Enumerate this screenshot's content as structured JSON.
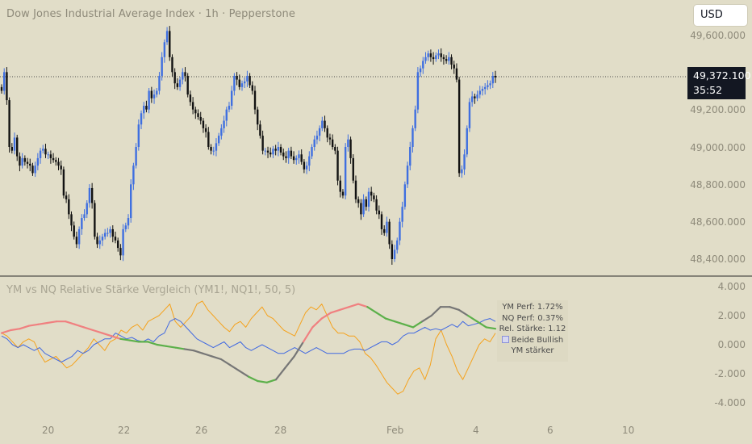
{
  "header": {
    "title": "Dow Jones Industrial Average Index · 1h · Pepperstone"
  },
  "currency_button": {
    "label": "USD"
  },
  "price_axis": {
    "labels": [
      "49,600.000",
      "49,200.000",
      "49,000.000",
      "48,800.000",
      "48,600.000",
      "48,400.000"
    ]
  },
  "last_price": {
    "value": "49,372.100",
    "countdown": "35:52"
  },
  "indicator": {
    "title": "YM vs NQ Relative Stärke Vergleich (YM1!, NQ1!, 50, 5)",
    "axis_labels": [
      "4.000",
      "2.000",
      "0.000",
      "-2.000",
      "-4.000"
    ],
    "info": {
      "ym_perf": "YM Perf: 1.72%",
      "nq_perf": "NQ Perf: 0.37%",
      "rel_strength": "Rel. Stärke: 1.12",
      "status": "Beide Bullish",
      "note": "YM stärker"
    }
  },
  "time_axis": {
    "labels": [
      "20",
      "22",
      "26",
      "28",
      "Feb",
      "4",
      "6",
      "10"
    ]
  },
  "colors": {
    "background": "#e1ddc8",
    "candle_up": "#3f6fe0",
    "candle_down": "#121212",
    "line_orange": "#f5a21c",
    "line_blue": "#4169e1",
    "strength_red": "#f08080",
    "strength_green": "#5cb04a",
    "strength_gray": "#767676"
  },
  "chart_data": [
    {
      "type": "candlestick",
      "title": "Dow Jones Industrial Average Index · 1h · Pepperstone",
      "ylim": [
        48300,
        49700
      ],
      "y_ticks": [
        48400,
        48600,
        48800,
        49000,
        49200,
        49600
      ],
      "last": 49372.1,
      "close": [
        49300,
        49400,
        49250,
        49000,
        48980,
        49050,
        48950,
        48900,
        48940,
        48920,
        48910,
        48900,
        48860,
        48900,
        48940,
        48980,
        48990,
        48960,
        48960,
        48940,
        48930,
        48920,
        48900,
        48880,
        48740,
        48720,
        48640,
        48580,
        48520,
        48480,
        48560,
        48620,
        48640,
        48700,
        48780,
        48700,
        48520,
        48480,
        48500,
        48520,
        48540,
        48540,
        48560,
        48520,
        48500,
        48460,
        48420,
        48560,
        48580,
        48620,
        48800,
        48900,
        49000,
        49120,
        49180,
        49220,
        49200,
        49300,
        49260,
        49280,
        49300,
        49380,
        49480,
        49560,
        49620,
        49480,
        49400,
        49340,
        49320,
        49360,
        49400,
        49380,
        49280,
        49240,
        49200,
        49180,
        49160,
        49140,
        49100,
        49080,
        49000,
        48980,
        48980,
        49020,
        49060,
        49100,
        49140,
        49200,
        49220,
        49300,
        49380,
        49360,
        49320,
        49340,
        49350,
        49380,
        49330,
        49300,
        49200,
        49120,
        49060,
        48980,
        48980,
        48970,
        48960,
        48990,
        48980,
        49000,
        48970,
        48950,
        48940,
        48980,
        48950,
        48930,
        48940,
        48960,
        48920,
        48880,
        48900,
        48950,
        49000,
        49040,
        49060,
        49100,
        49140,
        49100,
        49050,
        49040,
        49000,
        48980,
        48820,
        48760,
        48740,
        49000,
        49040,
        48940,
        48820,
        48720,
        48700,
        48640,
        48720,
        48680,
        48760,
        48740,
        48720,
        48660,
        48640,
        48560,
        48540,
        48600,
        48480,
        48400,
        48450,
        48500,
        48600,
        48680,
        48800,
        48900,
        49000,
        49100,
        49200,
        49400,
        49420,
        49460,
        49480,
        49500,
        49480,
        49470,
        49490,
        49500,
        49480,
        49470,
        49460,
        49480,
        49440,
        49420,
        49360,
        48860,
        48880,
        48960,
        49100,
        49240,
        49270,
        49260,
        49280,
        49300,
        49310,
        49320,
        49330,
        49340,
        49380,
        49372
      ]
    },
    {
      "type": "line",
      "title": "YM vs NQ Relative Stärke Vergleich (YM1!, NQ1!, 50, 5)",
      "ylim": [
        -4.5,
        4.5
      ],
      "y_ticks": [
        -4,
        -2,
        0,
        2,
        4
      ],
      "series": [
        {
          "values": [
            0.8,
            0.6,
            0.2,
            -0.2,
            0.2,
            0.4,
            0.2,
            -0.6,
            -1.2,
            -1.0,
            -0.8,
            -1.2,
            -1.6,
            -1.4,
            -1.0,
            -0.6,
            -0.2,
            0.4,
            0.0,
            -0.4,
            0.2,
            0.4,
            1.0,
            0.8,
            1.2,
            1.4,
            1.0,
            1.6,
            1.8,
            2.0,
            2.4,
            2.8,
            1.6,
            1.2,
            1.6,
            2.0,
            2.8,
            3.0,
            2.4,
            2.0,
            1.6,
            1.2,
            0.9,
            1.4,
            1.6,
            1.2,
            1.8,
            2.2,
            2.6,
            2.0,
            1.8,
            1.4,
            1.0,
            0.8,
            0.6,
            1.4,
            2.2,
            2.6,
            2.4,
            2.8,
            2.0,
            1.2,
            0.8,
            0.8,
            0.6,
            0.6,
            0.2,
            -0.6,
            -0.9,
            -1.4,
            -2.0,
            -2.6,
            -3.0,
            -3.4,
            -3.2,
            -2.4,
            -1.8,
            -1.6,
            -2.4,
            -1.4,
            0.4,
            1.0,
            0.0,
            -0.8,
            -1.8,
            -2.4,
            -1.6,
            -0.8,
            0.0,
            0.4,
            0.2,
            0.8
          ]
        },
        {
          "values": [
            0.6,
            0.4,
            0.0,
            -0.2,
            0.0,
            -0.2,
            -0.4,
            -0.2,
            -0.6,
            -0.8,
            -1.0,
            -1.2,
            -1.0,
            -0.8,
            -0.4,
            -0.6,
            -0.4,
            0.0,
            0.2,
            0.4,
            0.4,
            0.8,
            0.6,
            0.4,
            0.5,
            0.3,
            0.2,
            0.4,
            0.2,
            0.6,
            0.8,
            1.6,
            1.8,
            1.6,
            1.2,
            0.8,
            0.4,
            0.2,
            0.0,
            -0.2,
            0.0,
            0.2,
            -0.2,
            0.0,
            0.2,
            -0.2,
            -0.4,
            -0.2,
            0.0,
            -0.2,
            -0.4,
            -0.6,
            -0.6,
            -0.4,
            -0.2,
            -0.4,
            -0.6,
            -0.4,
            -0.2,
            -0.4,
            -0.6,
            -0.6,
            -0.6,
            -0.6,
            -0.4,
            -0.3,
            -0.3,
            -0.4,
            -0.2,
            0.0,
            0.2,
            0.2,
            0.0,
            0.2,
            0.6,
            0.8,
            0.8,
            1.0,
            1.2,
            1.0,
            1.1,
            1.0,
            1.2,
            1.4,
            1.2,
            1.6,
            1.3,
            1.4,
            1.5,
            1.7,
            1.8,
            1.6
          ]
        },
        {
          "values": [
            0.8,
            1.0,
            1.1,
            1.3,
            1.4,
            1.5,
            1.6,
            1.6,
            1.4,
            1.2,
            1.0,
            0.8,
            0.6,
            0.4,
            0.3,
            0.2,
            0.2,
            0.0,
            -0.1,
            -0.2,
            -0.3,
            -0.4,
            -0.6,
            -0.8,
            -1.0,
            -1.4,
            -1.8,
            -2.2,
            -2.5,
            -2.6,
            -2.4,
            -1.6,
            -0.8,
            0.2,
            1.2,
            1.8,
            2.2,
            2.4,
            2.6,
            2.8,
            2.6,
            2.2,
            1.8,
            1.6,
            1.4,
            1.2,
            1.6,
            2.0,
            2.6,
            2.6,
            2.4,
            2.0,
            1.6,
            1.2,
            1.1
          ]
        }
      ]
    }
  ]
}
